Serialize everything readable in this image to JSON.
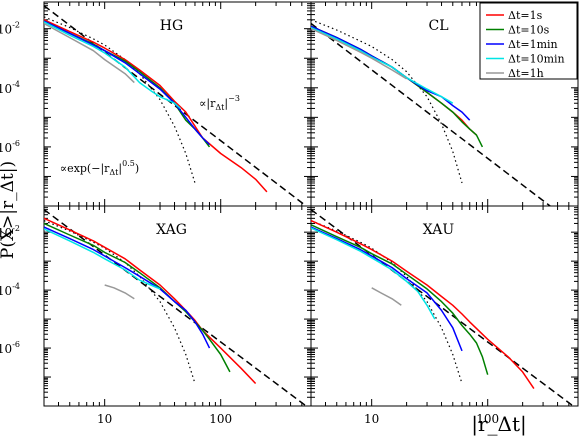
{
  "figure": {
    "ylabel": "P(X>|r_Δt|)",
    "xlabel": "|r_Δt|"
  },
  "chart_data": [
    {
      "type": "line",
      "title": "HG",
      "xscale": "log",
      "yscale": "log",
      "xlim": [
        3,
        600
      ],
      "ylim": [
        1e-08,
        0.08
      ],
      "legend": null,
      "series": [
        {
          "name": "Δt=1s",
          "color": "#ff0000",
          "x": [
            3,
            5,
            8,
            10,
            15,
            20,
            30,
            40,
            50,
            60,
            70,
            100,
            150,
            200,
            250
          ],
          "y": [
            0.02,
            0.008,
            0.0035,
            0.0022,
            0.0009,
            0.0004,
            0.00012,
            3.5e-05,
            1.5e-05,
            5e-06,
            2e-06,
            6e-07,
            2e-07,
            8e-08,
            3e-08
          ]
        },
        {
          "name": "Δt=10s",
          "color": "#008000",
          "x": [
            3,
            5,
            8,
            10,
            15,
            20,
            30,
            40,
            50,
            60,
            70,
            80
          ],
          "y": [
            0.018,
            0.007,
            0.003,
            0.0018,
            0.0008,
            0.00035,
            0.0001,
            3e-05,
            8e-06,
            4e-06,
            2e-06,
            1e-06
          ]
        },
        {
          "name": "Δt=1min",
          "color": "#0000ff",
          "x": [
            3,
            5,
            8,
            10,
            15,
            20,
            30,
            40,
            50,
            60,
            70,
            80
          ],
          "y": [
            0.018,
            0.007,
            0.0028,
            0.0018,
            0.0007,
            0.0003,
            9e-05,
            3e-05,
            1e-05,
            4e-06,
            2e-06,
            1.2e-06
          ]
        },
        {
          "name": "Δt=10min",
          "color": "#00e5e5",
          "x": [
            3,
            5,
            8,
            10,
            15,
            20,
            25,
            30,
            40,
            45
          ],
          "y": [
            0.017,
            0.006,
            0.0025,
            0.0015,
            0.0005,
            0.00015,
            8e-05,
            5e-05,
            3e-05,
            2e-05
          ]
        },
        {
          "name": "Δt=1h",
          "color": "#999999",
          "x": [
            3,
            5,
            8,
            10,
            15,
            18
          ],
          "y": [
            0.015,
            0.005,
            0.0018,
            0.0009,
            0.0003,
            0.00015
          ]
        }
      ],
      "reference_lines": [
        {
          "label": "∝|r_Δt|^-3",
          "style": "dashed",
          "x": [
            3,
            600
          ],
          "y": [
            0.06,
            7.5e-09
          ]
        },
        {
          "label": "∝exp(−|r_Δt|^0.5)",
          "style": "dotted",
          "x": [
            3,
            5,
            8,
            10,
            15,
            20,
            30,
            40,
            50,
            60
          ],
          "y": [
            0.025,
            0.011,
            0.0045,
            0.0028,
            0.0009,
            0.0003,
            4e-05,
            5e-06,
            6e-07,
            6e-08
          ]
        }
      ]
    },
    {
      "type": "line",
      "title": "CL",
      "xscale": "log",
      "yscale": "log",
      "xlim": [
        3,
        600
      ],
      "ylim": [
        1e-08,
        0.08
      ],
      "legend": "top-right",
      "series": [
        {
          "name": "Δt=1s",
          "color": "#ff0000",
          "x": [
            3,
            5,
            8,
            10,
            15,
            20,
            30,
            40,
            50,
            60,
            70,
            80
          ],
          "y": [
            0.012,
            0.005,
            0.002,
            0.0012,
            0.0005,
            0.00022,
            7e-05,
            3e-05,
            1.5e-05,
            8e-06,
            4e-06,
            2.5e-06
          ]
        },
        {
          "name": "Δt=10s",
          "color": "#008000",
          "x": [
            3,
            5,
            8,
            10,
            15,
            20,
            30,
            40,
            50,
            60,
            70,
            80,
            90
          ],
          "y": [
            0.012,
            0.005,
            0.002,
            0.0012,
            0.0005,
            0.00022,
            7e-05,
            3e-05,
            1.5e-05,
            7e-06,
            4e-06,
            2.5e-06,
            1e-06
          ]
        },
        {
          "name": "Δt=1min",
          "color": "#0000ff",
          "x": [
            3,
            5,
            8,
            10,
            15,
            20,
            30,
            40,
            50,
            60,
            70
          ],
          "y": [
            0.012,
            0.005,
            0.002,
            0.0012,
            0.0005,
            0.00022,
            8e-05,
            5e-05,
            2.5e-05,
            1.5e-05,
            8e-06
          ]
        },
        {
          "name": "Δt=10min",
          "color": "#00e5e5",
          "x": [
            3,
            5,
            8,
            10,
            15,
            20,
            30,
            40,
            50
          ],
          "y": [
            0.011,
            0.0045,
            0.0018,
            0.0011,
            0.0005,
            0.00022,
            9e-05,
            5e-05,
            3e-05
          ]
        },
        {
          "name": "Δt=1h",
          "color": "#999999",
          "x": [
            3,
            5,
            8,
            10,
            15,
            20
          ],
          "y": [
            0.01,
            0.004,
            0.0016,
            0.001,
            0.0004,
            0.0002
          ]
        }
      ],
      "reference_lines": [
        {
          "label": "",
          "style": "dashed",
          "x": [
            3,
            600
          ],
          "y": [
            0.015,
            1.9e-09
          ]
        },
        {
          "label": "",
          "style": "dotted",
          "x": [
            3,
            5,
            8,
            10,
            15,
            20,
            30,
            40,
            50,
            60
          ],
          "y": [
            0.02,
            0.009,
            0.0038,
            0.0025,
            0.0009,
            0.00035,
            5e-05,
            6e-06,
            7e-07,
            6e-08
          ]
        }
      ]
    },
    {
      "type": "line",
      "title": "XAG",
      "xscale": "log",
      "yscale": "log",
      "xlim": [
        3,
        600
      ],
      "ylim": [
        1e-08,
        0.08
      ],
      "legend": null,
      "series": [
        {
          "name": "Δt=1s",
          "color": "#ff0000",
          "x": [
            3,
            5,
            8,
            10,
            15,
            20,
            30,
            40,
            50,
            60,
            70,
            100,
            150,
            200
          ],
          "y": [
            0.03,
            0.012,
            0.005,
            0.003,
            0.0012,
            0.0005,
            0.00015,
            5e-05,
            2e-05,
            9e-06,
            4e-06,
            1e-06,
            2e-07,
            6e-08
          ]
        },
        {
          "name": "Δt=10s",
          "color": "#008000",
          "x": [
            3,
            5,
            8,
            10,
            15,
            20,
            30,
            40,
            50,
            60,
            70,
            80,
            100,
            120
          ],
          "y": [
            0.02,
            0.008,
            0.0035,
            0.002,
            0.0009,
            0.0004,
            0.00012,
            4e-05,
            1.8e-05,
            8e-06,
            4e-06,
            2e-06,
            6e-07,
            1.5e-07
          ]
        },
        {
          "name": "Δt=1min",
          "color": "#0000ff",
          "x": [
            3,
            5,
            8,
            10,
            15,
            20,
            30,
            40,
            50,
            60,
            70,
            80
          ],
          "y": [
            0.015,
            0.006,
            0.0025,
            0.0015,
            0.0006,
            0.0003,
            0.00011,
            4e-05,
            2e-05,
            8e-06,
            3e-06,
            1e-06
          ]
        },
        {
          "name": "Δt=10min",
          "color": "#00e5e5",
          "x": [
            3,
            5,
            8,
            10,
            15,
            20,
            25,
            30
          ],
          "y": [
            0.013,
            0.005,
            0.002,
            0.0012,
            0.0005,
            0.00022,
            0.00015,
            0.00011
          ]
        },
        {
          "name": "Δt=1h",
          "color": "#999999",
          "x": [
            10,
            12,
            15,
            18
          ],
          "y": [
            0.00015,
            0.00012,
            8e-05,
            5e-05
          ]
        }
      ],
      "reference_lines": [
        {
          "label": "",
          "style": "dashed",
          "x": [
            3,
            600
          ],
          "y": [
            0.06,
            7.5e-09
          ]
        },
        {
          "label": "",
          "style": "dotted",
          "x": [
            3,
            5,
            8,
            10,
            15,
            20,
            30,
            40,
            50,
            60
          ],
          "y": [
            0.025,
            0.011,
            0.0045,
            0.0028,
            0.0009,
            0.0003,
            4e-05,
            5e-06,
            6e-07,
            6e-08
          ]
        }
      ]
    },
    {
      "type": "line",
      "title": "XAU",
      "xscale": "log",
      "yscale": "log",
      "xlim": [
        3,
        600
      ],
      "ylim": [
        1e-08,
        0.08
      ],
      "legend": null,
      "series": [
        {
          "name": "Δt=1s",
          "color": "#ff0000",
          "x": [
            3,
            5,
            8,
            10,
            15,
            20,
            30,
            40,
            50,
            60,
            70,
            100,
            150,
            200,
            250
          ],
          "y": [
            0.025,
            0.01,
            0.004,
            0.0025,
            0.001,
            0.00045,
            0.00015,
            6e-05,
            3e-05,
            1.5e-05,
            8e-06,
            2e-06,
            5e-07,
            1.5e-07,
            4e-08
          ]
        },
        {
          "name": "Δt=10s",
          "color": "#008000",
          "x": [
            3,
            5,
            8,
            10,
            15,
            20,
            30,
            40,
            50,
            60,
            70,
            80,
            90,
            100
          ],
          "y": [
            0.018,
            0.007,
            0.003,
            0.0018,
            0.0008,
            0.00035,
            0.00011,
            4e-05,
            1.6e-05,
            6e-06,
            3e-06,
            1.5e-06,
            5e-07,
            1.2e-07
          ]
        },
        {
          "name": "Δt=1min",
          "color": "#0000ff",
          "x": [
            3,
            5,
            8,
            10,
            15,
            20,
            30,
            40,
            50,
            60
          ],
          "y": [
            0.015,
            0.006,
            0.0025,
            0.0015,
            0.0006,
            0.00025,
            8e-05,
            2e-05,
            5e-06,
            8e-07
          ]
        },
        {
          "name": "Δt=10min",
          "color": "#00e5e5",
          "x": [
            3,
            5,
            8,
            10,
            15,
            20,
            25,
            30,
            35
          ],
          "y": [
            0.014,
            0.0055,
            0.0022,
            0.0013,
            0.0005,
            0.0002,
            9e-05,
            3e-05,
            1e-05
          ]
        },
        {
          "name": "Δt=1h",
          "color": "#999999",
          "x": [
            10,
            12,
            15,
            18
          ],
          "y": [
            0.00012,
            8e-05,
            5e-05,
            3e-05
          ]
        }
      ],
      "reference_lines": [
        {
          "label": "",
          "style": "dashed",
          "x": [
            3,
            600
          ],
          "y": [
            0.06,
            7.5e-09
          ]
        },
        {
          "label": "",
          "style": "dotted",
          "x": [
            3,
            5,
            8,
            10,
            15,
            20,
            30,
            40,
            50,
            60
          ],
          "y": [
            0.025,
            0.011,
            0.0045,
            0.0028,
            0.0009,
            0.0003,
            4e-05,
            5e-06,
            6e-07,
            6e-08
          ]
        }
      ]
    }
  ]
}
